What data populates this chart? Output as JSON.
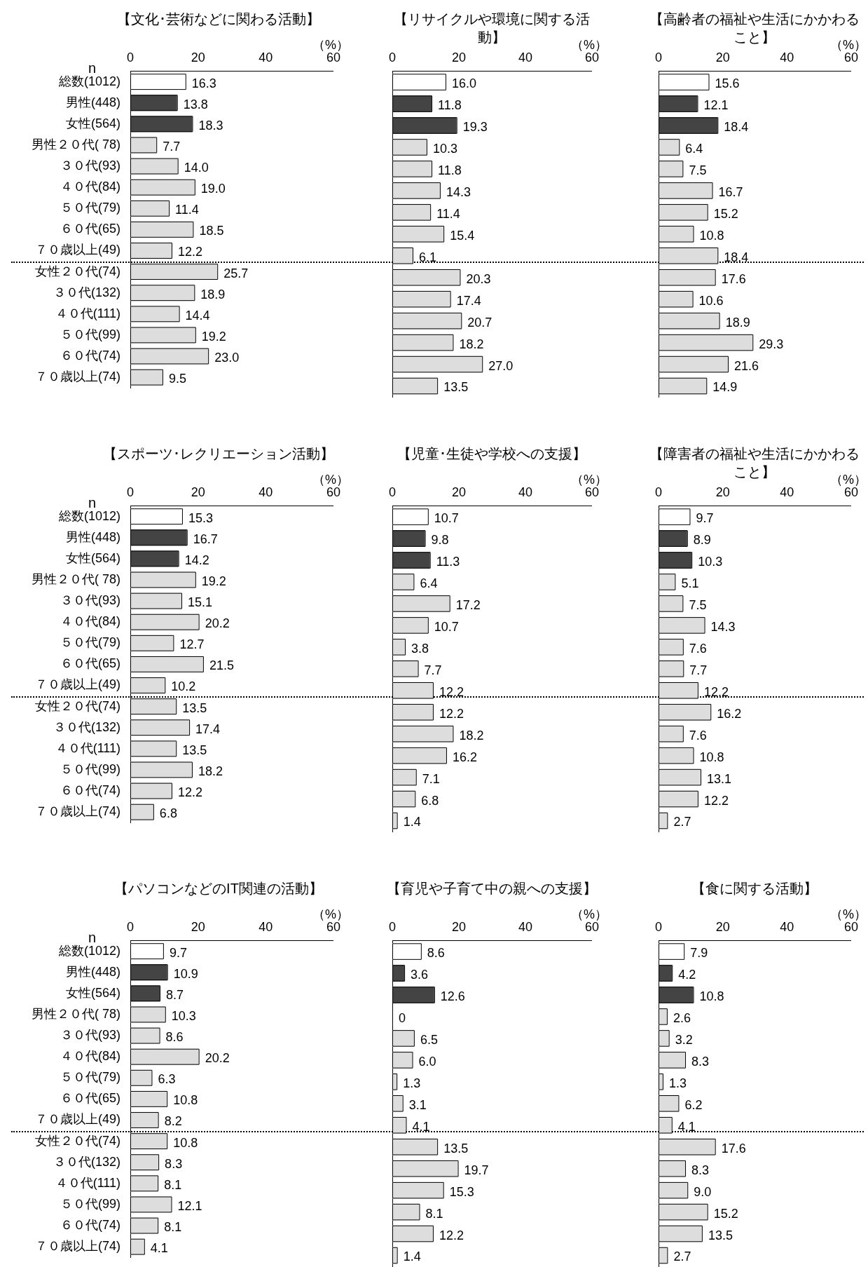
{
  "chart_data": [
    {
      "type": "bar",
      "orientation": "horizontal",
      "title": "【文化･芸術などに関わる活動】",
      "xlabel": "（%）",
      "annotations": [
        "n"
      ],
      "categories": [
        "総数(1012)",
        "男性(448)",
        "女性(564)",
        "男性２０代( 78)",
        "３０代(93)",
        "４０代(84)",
        "５０代(79)",
        "６０代(65)",
        "７０歳以上(49)",
        "女性２０代(74)",
        "３０代(132)",
        "４０代(111)",
        "５０代(99)",
        "６０代(74)",
        "７０歳以上(74)"
      ],
      "values": [
        16.3,
        13.8,
        18.3,
        7.7,
        14.0,
        19.0,
        11.4,
        18.5,
        12.2,
        25.7,
        18.9,
        14.4,
        19.2,
        23.0,
        9.5
      ],
      "value_labels": [
        "16.3",
        "13.8",
        "18.3",
        "7.7",
        "14.0",
        "19.0",
        "11.4",
        "18.5",
        "12.2",
        "25.7",
        "18.9",
        "14.4",
        "19.2",
        "23.0",
        "9.5"
      ],
      "colors": [
        "#ffffff",
        "#444444",
        "#444444",
        "#dddddd",
        "#dddddd",
        "#dddddd",
        "#dddddd",
        "#dddddd",
        "#dddddd",
        "#dddddd",
        "#dddddd",
        "#dddddd",
        "#dddddd",
        "#dddddd",
        "#dddddd"
      ],
      "xlim": [
        0,
        60
      ],
      "xticks": [
        0,
        20,
        40,
        60
      ]
    },
    {
      "type": "bar",
      "orientation": "horizontal",
      "title": "【リサイクルや環境に関する活動】",
      "xlabel": "（%）",
      "tick_labels": "x",
      "categories": [
        null,
        null,
        null,
        null,
        null,
        null,
        null,
        null,
        null,
        null,
        null,
        null,
        null,
        null,
        null
      ],
      "values": [
        16.0,
        11.8,
        19.3,
        10.3,
        11.8,
        14.3,
        11.4,
        15.4,
        6.1,
        20.3,
        17.4,
        20.7,
        18.2,
        27.0,
        13.5
      ],
      "value_labels": [
        "16.0",
        "11.8",
        "19.3",
        "10.3",
        "11.8",
        "14.3",
        "11.4",
        "15.4",
        "6.1",
        "20.3",
        "17.4",
        "20.7",
        "18.2",
        "27.0",
        "13.5"
      ],
      "colors": [
        "#ffffff",
        "#444444",
        "#444444",
        "#dddddd",
        "#dddddd",
        "#dddddd",
        "#dddddd",
        "#dddddd",
        "#dddddd",
        "#dddddd",
        "#dddddd",
        "#dddddd",
        "#dddddd",
        "#dddddd",
        "#dddddd"
      ],
      "xlim": [
        0,
        60
      ],
      "xticks": [
        0,
        20,
        40,
        60
      ]
    },
    {
      "type": "bar",
      "orientation": "horizontal",
      "title": "【高齢者の福祉や生活にかかわること】",
      "xlabel": "（%）",
      "tick_labels": "x",
      "categories": [
        null,
        null,
        null,
        null,
        null,
        null,
        null,
        null,
        null,
        null,
        null,
        null,
        null,
        null,
        null
      ],
      "values": [
        15.6,
        12.1,
        18.4,
        6.4,
        7.5,
        16.7,
        15.2,
        10.8,
        18.4,
        17.6,
        10.6,
        18.9,
        29.3,
        21.6,
        14.9
      ],
      "value_labels": [
        "15.6",
        "12.1",
        "18.4",
        "6.4",
        "7.5",
        "16.7",
        "15.2",
        "10.8",
        "18.4",
        "17.6",
        "10.6",
        "18.9",
        "29.3",
        "21.6",
        "14.9"
      ],
      "colors": [
        "#ffffff",
        "#444444",
        "#444444",
        "#dddddd",
        "#dddddd",
        "#dddddd",
        "#dddddd",
        "#dddddd",
        "#dddddd",
        "#dddddd",
        "#dddddd",
        "#dddddd",
        "#dddddd",
        "#dddddd",
        "#dddddd"
      ],
      "xlim": [
        0,
        60
      ],
      "xticks": [
        0,
        20,
        40,
        60
      ]
    },
    {
      "type": "bar",
      "orientation": "horizontal",
      "title": "【スポーツ･レクリエーション活動】",
      "xlabel": "（%）",
      "annotations": [
        "n"
      ],
      "categories": [
        "総数(1012)",
        "男性(448)",
        "女性(564)",
        "男性２０代( 78)",
        "３０代(93)",
        "４０代(84)",
        "５０代(79)",
        "６０代(65)",
        "７０歳以上(49)",
        "女性２０代(74)",
        "３０代(132)",
        "４０代(111)",
        "５０代(99)",
        "６０代(74)",
        "７０歳以上(74)"
      ],
      "values": [
        15.3,
        16.7,
        14.2,
        19.2,
        15.1,
        20.2,
        12.7,
        21.5,
        10.2,
        13.5,
        17.4,
        13.5,
        18.2,
        12.2,
        6.8
      ],
      "value_labels": [
        "15.3",
        "16.7",
        "14.2",
        "19.2",
        "15.1",
        "20.2",
        "12.7",
        "21.5",
        "10.2",
        "13.5",
        "17.4",
        "13.5",
        "18.2",
        "12.2",
        "6.8"
      ],
      "colors": [
        "#ffffff",
        "#444444",
        "#444444",
        "#dddddd",
        "#dddddd",
        "#dddddd",
        "#dddddd",
        "#dddddd",
        "#dddddd",
        "#dddddd",
        "#dddddd",
        "#dddddd",
        "#dddddd",
        "#dddddd",
        "#dddddd"
      ],
      "xlim": [
        0,
        60
      ],
      "xticks": [
        0,
        20,
        40,
        60
      ]
    },
    {
      "type": "bar",
      "orientation": "horizontal",
      "title": "【児童･生徒や学校への支援】",
      "xlabel": "（%）",
      "tick_labels": "x",
      "categories": [
        null,
        null,
        null,
        null,
        null,
        null,
        null,
        null,
        null,
        null,
        null,
        null,
        null,
        null,
        null
      ],
      "values": [
        10.7,
        9.8,
        11.3,
        6.4,
        17.2,
        10.7,
        3.8,
        7.7,
        12.2,
        12.2,
        18.2,
        16.2,
        7.1,
        6.8,
        1.4
      ],
      "value_labels": [
        "10.7",
        "9.8",
        "11.3",
        "6.4",
        "17.2",
        "10.7",
        "3.8",
        "7.7",
        "12.2",
        "12.2",
        "18.2",
        "16.2",
        "7.1",
        "6.8",
        "1.4"
      ],
      "colors": [
        "#ffffff",
        "#444444",
        "#444444",
        "#dddddd",
        "#dddddd",
        "#dddddd",
        "#dddddd",
        "#dddddd",
        "#dddddd",
        "#dddddd",
        "#dddddd",
        "#dddddd",
        "#dddddd",
        "#dddddd",
        "#dddddd"
      ],
      "xlim": [
        0,
        60
      ],
      "xticks": [
        0,
        20,
        40,
        60
      ]
    },
    {
      "type": "bar",
      "orientation": "horizontal",
      "title": "【障害者の福祉や生活にかかわること】",
      "xlabel": "（%）",
      "tick_labels": "x",
      "categories": [
        null,
        null,
        null,
        null,
        null,
        null,
        null,
        null,
        null,
        null,
        null,
        null,
        null,
        null,
        null
      ],
      "values": [
        9.7,
        8.9,
        10.3,
        5.1,
        7.5,
        14.3,
        7.6,
        7.7,
        12.2,
        16.2,
        7.6,
        10.8,
        13.1,
        12.2,
        2.7
      ],
      "value_labels": [
        "9.7",
        "8.9",
        "10.3",
        "5.1",
        "7.5",
        "14.3",
        "7.6",
        "7.7",
        "12.2",
        "16.2",
        "7.6",
        "10.8",
        "13.1",
        "12.2",
        "2.7"
      ],
      "colors": [
        "#ffffff",
        "#444444",
        "#444444",
        "#dddddd",
        "#dddddd",
        "#dddddd",
        "#dddddd",
        "#dddddd",
        "#dddddd",
        "#dddddd",
        "#dddddd",
        "#dddddd",
        "#dddddd",
        "#dddddd",
        "#dddddd"
      ],
      "xlim": [
        0,
        60
      ],
      "xticks": [
        0,
        20,
        40,
        60
      ]
    },
    {
      "type": "bar",
      "orientation": "horizontal",
      "title": "【パソコンなどのIT関連の活動】",
      "xlabel": "（%）",
      "annotations": [
        "n"
      ],
      "categories": [
        "総数(1012)",
        "男性(448)",
        "女性(564)",
        "男性２０代( 78)",
        "３０代(93)",
        "４０代(84)",
        "５０代(79)",
        "６０代(65)",
        "７０歳以上(49)",
        "女性２０代(74)",
        "３０代(132)",
        "４０代(111)",
        "５０代(99)",
        "６０代(74)",
        "７０歳以上(74)"
      ],
      "values": [
        9.7,
        10.9,
        8.7,
        10.3,
        8.6,
        20.2,
        6.3,
        10.8,
        8.2,
        10.8,
        8.3,
        8.1,
        12.1,
        8.1,
        4.1
      ],
      "value_labels": [
        "9.7",
        "10.9",
        "8.7",
        "10.3",
        "8.6",
        "20.2",
        "6.3",
        "10.8",
        "8.2",
        "10.8",
        "8.3",
        "8.1",
        "12.1",
        "8.1",
        "4.1"
      ],
      "colors": [
        "#ffffff",
        "#444444",
        "#444444",
        "#dddddd",
        "#dddddd",
        "#dddddd",
        "#dddddd",
        "#dddddd",
        "#dddddd",
        "#dddddd",
        "#dddddd",
        "#dddddd",
        "#dddddd",
        "#dddddd",
        "#dddddd"
      ],
      "xlim": [
        0,
        60
      ],
      "xticks": [
        0,
        20,
        40,
        60
      ]
    },
    {
      "type": "bar",
      "orientation": "horizontal",
      "title": "【育児や子育て中の親への支援】",
      "xlabel": "（%）",
      "tick_labels": "x",
      "categories": [
        null,
        null,
        null,
        null,
        null,
        null,
        null,
        null,
        null,
        null,
        null,
        null,
        null,
        null,
        null
      ],
      "values": [
        8.6,
        3.6,
        12.6,
        0,
        6.5,
        6.0,
        1.3,
        3.1,
        4.1,
        13.5,
        19.7,
        15.3,
        8.1,
        12.2,
        1.4
      ],
      "value_labels": [
        "8.6",
        "3.6",
        "12.6",
        "0",
        "6.5",
        "6.0",
        "1.3",
        "3.1",
        "4.1",
        "13.5",
        "19.7",
        "15.3",
        "8.1",
        "12.2",
        "1.4"
      ],
      "colors": [
        "#ffffff",
        "#444444",
        "#444444",
        "#dddddd",
        "#dddddd",
        "#dddddd",
        "#dddddd",
        "#dddddd",
        "#dddddd",
        "#dddddd",
        "#dddddd",
        "#dddddd",
        "#dddddd",
        "#dddddd",
        "#dddddd"
      ],
      "xlim": [
        0,
        60
      ],
      "xticks": [
        0,
        20,
        40,
        60
      ]
    },
    {
      "type": "bar",
      "orientation": "horizontal",
      "title": "【食に関する活動】",
      "xlabel": "（%）",
      "tick_labels": "x",
      "categories": [
        null,
        null,
        null,
        null,
        null,
        null,
        null,
        null,
        null,
        null,
        null,
        null,
        null,
        null,
        null
      ],
      "values": [
        7.9,
        4.2,
        10.8,
        2.6,
        3.2,
        8.3,
        1.3,
        6.2,
        4.1,
        17.6,
        8.3,
        9.0,
        15.2,
        13.5,
        2.7
      ],
      "value_labels": [
        "7.9",
        "4.2",
        "10.8",
        "2.6",
        "3.2",
        "8.3",
        "1.3",
        "6.2",
        "4.1",
        "17.6",
        "8.3",
        "9.0",
        "15.2",
        "13.5",
        "2.7"
      ],
      "colors": [
        "#ffffff",
        "#444444",
        "#444444",
        "#dddddd",
        "#dddddd",
        "#dddddd",
        "#dddddd",
        "#dddddd",
        "#dddddd",
        "#dddddd",
        "#dddddd",
        "#dddddd",
        "#dddddd",
        "#dddddd",
        "#dddddd"
      ],
      "xlim": [
        0,
        60
      ],
      "xticks": [
        0,
        20,
        40,
        60
      ]
    }
  ]
}
